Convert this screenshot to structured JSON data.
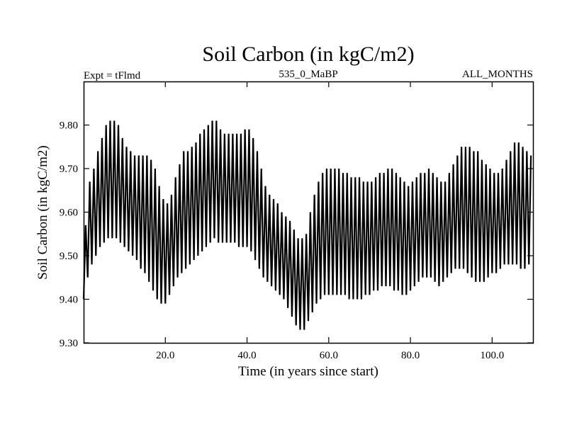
{
  "chart_data": {
    "type": "line",
    "title": "Soil Carbon (in kgC/m2)",
    "subtitle_left": "Expt = tFlmd",
    "subtitle_center": "535_0_MaBP",
    "subtitle_right": "ALL_MONTHS",
    "xlabel": "Time (in years since start)",
    "ylabel": "Soil Carbon (in kgC/m2)",
    "xlim": [
      0,
      110
    ],
    "ylim": [
      9.3,
      9.9
    ],
    "x_ticks": [
      {
        "value": 20,
        "label": "20.0"
      },
      {
        "value": 40,
        "label": "40.0"
      },
      {
        "value": 60,
        "label": "60.0"
      },
      {
        "value": 80,
        "label": "80.0"
      },
      {
        "value": 100,
        "label": "100.0"
      }
    ],
    "y_ticks": [
      {
        "value": 9.3,
        "label": "9.30"
      },
      {
        "value": 9.4,
        "label": "9.40"
      },
      {
        "value": 9.5,
        "label": "9.50"
      },
      {
        "value": 9.6,
        "label": "9.60"
      },
      {
        "value": 9.7,
        "label": "9.70"
      },
      {
        "value": 9.8,
        "label": "9.80"
      }
    ],
    "grid": false,
    "line_color": "#000000",
    "series": [
      {
        "sampling": "annual seasonal cycle, maximum and minimum per year",
        "years": [
          0,
          1,
          2,
          3,
          4,
          5,
          6,
          7,
          8,
          9,
          10,
          11,
          12,
          13,
          14,
          15,
          16,
          17,
          18,
          19,
          20,
          21,
          22,
          23,
          24,
          25,
          26,
          27,
          28,
          29,
          30,
          31,
          32,
          33,
          34,
          35,
          36,
          37,
          38,
          39,
          40,
          41,
          42,
          43,
          44,
          45,
          46,
          47,
          48,
          49,
          50,
          51,
          52,
          53,
          54,
          55,
          56,
          57,
          58,
          59,
          60,
          61,
          62,
          63,
          64,
          65,
          66,
          67,
          68,
          69,
          70,
          71,
          72,
          73,
          74,
          75,
          76,
          77,
          78,
          79,
          80,
          81,
          82,
          83,
          84,
          85,
          86,
          87,
          88,
          89,
          90,
          91,
          92,
          93,
          94,
          95,
          96,
          97,
          98,
          99,
          100,
          101,
          102,
          103,
          104,
          105,
          106,
          107,
          108,
          109
        ],
        "annual_max": [
          9.57,
          9.67,
          9.7,
          9.74,
          9.77,
          9.8,
          9.81,
          9.81,
          9.8,
          9.77,
          9.75,
          9.74,
          9.73,
          9.73,
          9.73,
          9.73,
          9.72,
          9.7,
          9.66,
          9.63,
          9.62,
          9.64,
          9.68,
          9.71,
          9.74,
          9.74,
          9.75,
          9.76,
          9.78,
          9.79,
          9.8,
          9.81,
          9.81,
          9.79,
          9.78,
          9.78,
          9.78,
          9.78,
          9.78,
          9.79,
          9.79,
          9.77,
          9.74,
          9.7,
          9.66,
          9.64,
          9.63,
          9.62,
          9.6,
          9.59,
          9.58,
          9.56,
          9.54,
          9.54,
          9.55,
          9.6,
          9.64,
          9.67,
          9.69,
          9.7,
          9.7,
          9.7,
          9.7,
          9.69,
          9.69,
          9.68,
          9.68,
          9.68,
          9.67,
          9.67,
          9.67,
          9.68,
          9.69,
          9.69,
          9.7,
          9.7,
          9.69,
          9.68,
          9.67,
          9.66,
          9.67,
          9.68,
          9.69,
          9.69,
          9.7,
          9.69,
          9.68,
          9.67,
          9.67,
          9.69,
          9.71,
          9.73,
          9.75,
          9.75,
          9.75,
          9.74,
          9.74,
          9.72,
          9.71,
          9.7,
          9.69,
          9.69,
          9.7,
          9.72,
          9.74,
          9.76,
          9.76,
          9.75,
          9.74,
          9.73
        ],
        "annual_min": [
          9.4,
          9.45,
          9.48,
          9.5,
          9.52,
          9.53,
          9.54,
          9.54,
          9.54,
          9.53,
          9.52,
          9.51,
          9.5,
          9.49,
          9.47,
          9.46,
          9.44,
          9.42,
          9.4,
          9.39,
          9.39,
          9.41,
          9.43,
          9.45,
          9.46,
          9.47,
          9.48,
          9.49,
          9.5,
          9.51,
          9.52,
          9.53,
          9.54,
          9.53,
          9.53,
          9.53,
          9.53,
          9.53,
          9.52,
          9.52,
          9.52,
          9.51,
          9.49,
          9.47,
          9.45,
          9.44,
          9.43,
          9.42,
          9.41,
          9.4,
          9.38,
          9.36,
          9.34,
          9.33,
          9.33,
          9.35,
          9.37,
          9.39,
          9.4,
          9.41,
          9.41,
          9.41,
          9.41,
          9.41,
          9.41,
          9.4,
          9.4,
          9.4,
          9.4,
          9.41,
          9.41,
          9.42,
          9.42,
          9.43,
          9.43,
          9.43,
          9.42,
          9.42,
          9.41,
          9.41,
          9.42,
          9.43,
          9.44,
          9.45,
          9.45,
          9.45,
          9.44,
          9.43,
          9.44,
          9.45,
          9.46,
          9.47,
          9.47,
          9.47,
          9.46,
          9.45,
          9.44,
          9.44,
          9.44,
          9.45,
          9.46,
          9.46,
          9.47,
          9.48,
          9.48,
          9.48,
          9.48,
          9.47,
          9.47,
          9.48
        ]
      }
    ]
  }
}
